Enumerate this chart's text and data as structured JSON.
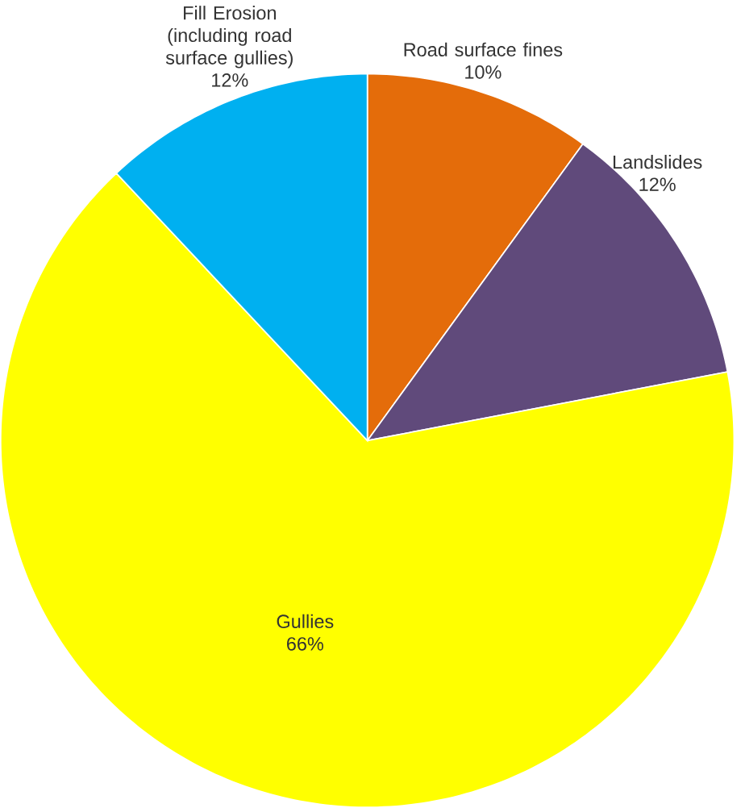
{
  "chart_data": {
    "type": "pie",
    "categories": [
      "Road surface fines",
      "Landslides",
      "Gullies",
      "Fill Erosion (including road surface gullies)"
    ],
    "values": [
      10,
      12,
      66,
      12
    ],
    "value_labels": [
      "10%",
      "12%",
      "66%",
      "12%"
    ],
    "colors": [
      "#e46c0a",
      "#604a7b",
      "#ffff00",
      "#00b0f0"
    ],
    "legend": false
  }
}
